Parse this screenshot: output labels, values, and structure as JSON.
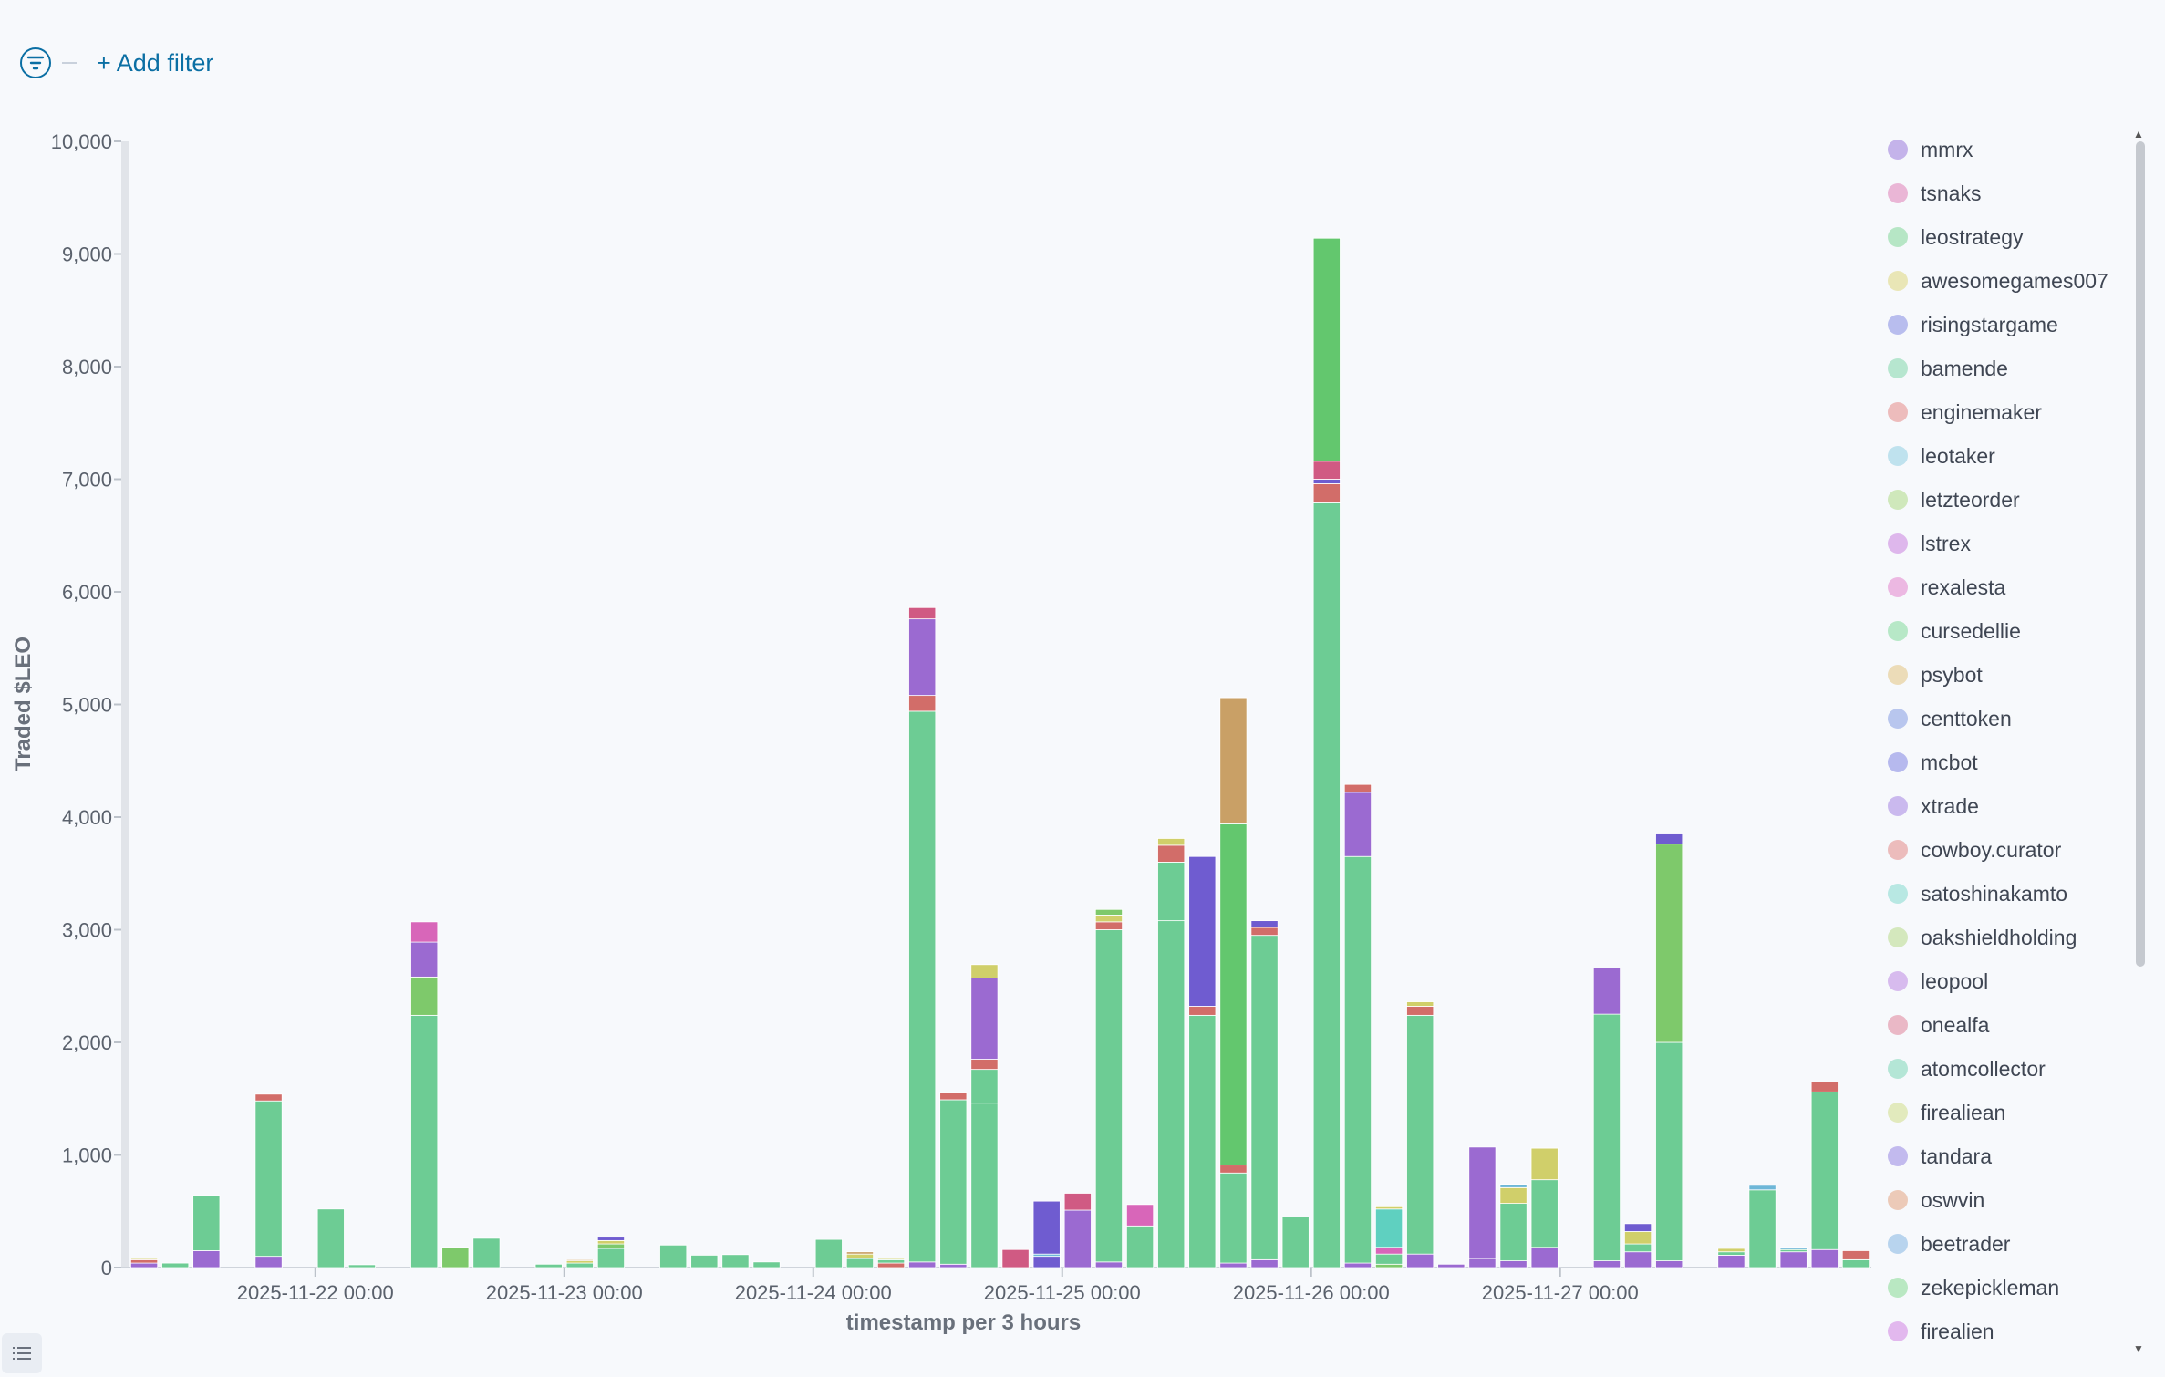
{
  "filter": {
    "add_label": "+ Add filter"
  },
  "colors": [
    "#6dcc94",
    "#9b6ad1",
    "#d26d69",
    "#d0cf6a",
    "#7ec96b",
    "#d866b9",
    "#5fd0c0",
    "#6f5cd0",
    "#c9a066",
    "#d05a83",
    "#6eb7d8",
    "#63c76e"
  ],
  "legend": [
    {
      "name": "mmrx",
      "color": "#c4b3ea"
    },
    {
      "name": "tsnaks",
      "color": "#eab6d6"
    },
    {
      "name": "leostrategy",
      "color": "#b6e6c5"
    },
    {
      "name": "awesomegames007",
      "color": "#e9e6b6"
    },
    {
      "name": "risingstargame",
      "color": "#b8bdee"
    },
    {
      "name": "bamende",
      "color": "#b6e6cf"
    },
    {
      "name": "enginemaker",
      "color": "#edbcbc"
    },
    {
      "name": "leotaker",
      "color": "#bfe2ee"
    },
    {
      "name": "letzteorder",
      "color": "#cfe8bb"
    },
    {
      "name": "lstrex",
      "color": "#deb7ec"
    },
    {
      "name": "rexalesta",
      "color": "#ecb8e2"
    },
    {
      "name": "cursedellie",
      "color": "#b7e8c7"
    },
    {
      "name": "psybot",
      "color": "#ecdcb8"
    },
    {
      "name": "centtoken",
      "color": "#b8c6ee"
    },
    {
      "name": "mcbot",
      "color": "#b6b9ee"
    },
    {
      "name": "xtrade",
      "color": "#cab9ee"
    },
    {
      "name": "cowboy.curator",
      "color": "#ecbcbc"
    },
    {
      "name": "satoshinakamto",
      "color": "#b8e8e3"
    },
    {
      "name": "oakshieldholding",
      "color": "#d4e8bd"
    },
    {
      "name": "leopool",
      "color": "#d7bbee"
    },
    {
      "name": "onealfa",
      "color": "#eab8c6"
    },
    {
      "name": "atomcollector",
      "color": "#b4e6d6"
    },
    {
      "name": "firealiean",
      "color": "#e2eabd"
    },
    {
      "name": "tandara",
      "color": "#c2baee"
    },
    {
      "name": "oswvin",
      "color": "#eccab8"
    },
    {
      "name": "beetrader",
      "color": "#b8d4ee"
    },
    {
      "name": "zekepickleman",
      "color": "#b9e8c2"
    },
    {
      "name": "firealien",
      "color": "#e2b8ee"
    }
  ],
  "chart_data": {
    "type": "bar",
    "stacked": true,
    "xlabel": "timestamp per 3 hours",
    "ylabel": "Traded $LEO",
    "ylim": [
      0,
      10000
    ],
    "yticks": [
      0,
      1000,
      2000,
      3000,
      4000,
      5000,
      6000,
      7000,
      8000,
      9000,
      10000
    ],
    "yticklabels": [
      "0",
      "1,000",
      "2,000",
      "3,000",
      "4,000",
      "5,000",
      "6,000",
      "7,000",
      "8,000",
      "9,000",
      "10,000"
    ],
    "xticks": [
      {
        "label": "2025-11-22 00:00",
        "bucket": 6
      },
      {
        "label": "2025-11-23 00:00",
        "bucket": 14
      },
      {
        "label": "2025-11-24 00:00",
        "bucket": 22
      },
      {
        "label": "2025-11-25 00:00",
        "bucket": 30
      },
      {
        "label": "2025-11-26 00:00",
        "bucket": 38
      },
      {
        "label": "2025-11-27 00:00",
        "bucket": 46
      }
    ],
    "bucket_count": 56,
    "bars": [
      {
        "bucket": 0,
        "segments": [
          [
            40,
            1
          ],
          [
            30,
            2
          ],
          [
            10,
            3
          ]
        ]
      },
      {
        "bucket": 1,
        "segments": [
          [
            40,
            0
          ]
        ]
      },
      {
        "bucket": 2,
        "segments": [
          [
            150,
            1
          ],
          [
            300,
            0
          ],
          [
            190,
            0
          ]
        ]
      },
      {
        "bucket": 4,
        "segments": [
          [
            100,
            1
          ],
          [
            1380,
            0
          ],
          [
            60,
            2
          ]
        ]
      },
      {
        "bucket": 6,
        "segments": [
          [
            520,
            0
          ]
        ]
      },
      {
        "bucket": 7,
        "segments": [
          [
            25,
            0
          ]
        ]
      },
      {
        "bucket": 9,
        "segments": [
          [
            2240,
            0
          ],
          [
            340,
            4
          ],
          [
            310,
            1
          ],
          [
            180,
            5
          ]
        ]
      },
      {
        "bucket": 10,
        "segments": [
          [
            180,
            4
          ]
        ]
      },
      {
        "bucket": 11,
        "segments": [
          [
            260,
            0
          ]
        ]
      },
      {
        "bucket": 13,
        "segments": [
          [
            30,
            0
          ]
        ]
      },
      {
        "bucket": 14,
        "segments": [
          [
            40,
            0
          ],
          [
            20,
            3
          ],
          [
            10,
            8
          ]
        ]
      },
      {
        "bucket": 15,
        "segments": [
          [
            170,
            0
          ],
          [
            40,
            4
          ],
          [
            30,
            3
          ],
          [
            30,
            7
          ]
        ]
      },
      {
        "bucket": 17,
        "segments": [
          [
            200,
            0
          ]
        ]
      },
      {
        "bucket": 18,
        "segments": [
          [
            110,
            0
          ]
        ]
      },
      {
        "bucket": 19,
        "segments": [
          [
            115,
            0
          ]
        ]
      },
      {
        "bucket": 20,
        "segments": [
          [
            50,
            0
          ]
        ]
      },
      {
        "bucket": 22,
        "segments": [
          [
            250,
            0
          ]
        ]
      },
      {
        "bucket": 23,
        "segments": [
          [
            80,
            0
          ],
          [
            40,
            3
          ],
          [
            20,
            8
          ]
        ]
      },
      {
        "bucket": 24,
        "segments": [
          [
            40,
            2
          ],
          [
            30,
            0
          ],
          [
            10,
            3
          ]
        ]
      },
      {
        "bucket": 25,
        "segments": [
          [
            50,
            1
          ],
          [
            4890,
            0
          ],
          [
            140,
            2
          ],
          [
            680,
            1
          ],
          [
            100,
            9
          ]
        ]
      },
      {
        "bucket": 26,
        "segments": [
          [
            30,
            1
          ],
          [
            1460,
            0
          ],
          [
            60,
            2
          ]
        ]
      },
      {
        "bucket": 27,
        "segments": [
          [
            1460,
            0
          ],
          [
            300,
            0
          ],
          [
            90,
            2
          ],
          [
            720,
            1
          ],
          [
            120,
            3
          ]
        ]
      },
      {
        "bucket": 28,
        "segments": [
          [
            160,
            9
          ]
        ]
      },
      {
        "bucket": 29,
        "segments": [
          [
            100,
            7
          ],
          [
            20,
            10
          ],
          [
            470,
            7
          ]
        ]
      },
      {
        "bucket": 30,
        "segments": [
          [
            510,
            1
          ],
          [
            150,
            9
          ]
        ]
      },
      {
        "bucket": 31,
        "segments": [
          [
            50,
            1
          ],
          [
            2950,
            0
          ],
          [
            70,
            2
          ],
          [
            60,
            3
          ],
          [
            50,
            4
          ]
        ]
      },
      {
        "bucket": 32,
        "segments": [
          [
            370,
            0
          ],
          [
            190,
            5
          ]
        ]
      },
      {
        "bucket": 33,
        "segments": [
          [
            3080,
            0
          ],
          [
            520,
            0
          ],
          [
            150,
            2
          ],
          [
            60,
            3
          ]
        ]
      },
      {
        "bucket": 34,
        "segments": [
          [
            2240,
            0
          ],
          [
            80,
            2
          ],
          [
            1330,
            7
          ]
        ]
      },
      {
        "bucket": 35,
        "segments": [
          [
            40,
            1
          ],
          [
            800,
            0
          ],
          [
            70,
            2
          ],
          [
            3030,
            11
          ],
          [
            1120,
            8
          ]
        ]
      },
      {
        "bucket": 36,
        "segments": [
          [
            70,
            1
          ],
          [
            2880,
            0
          ],
          [
            70,
            2
          ],
          [
            60,
            7
          ]
        ]
      },
      {
        "bucket": 37,
        "segments": [
          [
            450,
            0
          ]
        ]
      },
      {
        "bucket": 38,
        "segments": [
          [
            6790,
            0
          ],
          [
            170,
            2
          ],
          [
            40,
            7
          ],
          [
            160,
            9
          ],
          [
            1980,
            11
          ]
        ]
      },
      {
        "bucket": 39,
        "segments": [
          [
            40,
            1
          ],
          [
            3610,
            0
          ],
          [
            570,
            1
          ],
          [
            70,
            2
          ]
        ]
      },
      {
        "bucket": 40,
        "segments": [
          [
            30,
            4
          ],
          [
            90,
            0
          ],
          [
            60,
            5
          ],
          [
            340,
            6
          ],
          [
            20,
            3
          ]
        ]
      },
      {
        "bucket": 41,
        "segments": [
          [
            120,
            1
          ],
          [
            2120,
            0
          ],
          [
            80,
            2
          ],
          [
            40,
            3
          ]
        ]
      },
      {
        "bucket": 42,
        "segments": [
          [
            30,
            1
          ]
        ]
      },
      {
        "bucket": 43,
        "segments": [
          [
            80,
            1
          ],
          [
            990,
            1
          ]
        ]
      },
      {
        "bucket": 44,
        "segments": [
          [
            60,
            1
          ],
          [
            510,
            0
          ],
          [
            140,
            3
          ],
          [
            30,
            10
          ]
        ]
      },
      {
        "bucket": 45,
        "segments": [
          [
            180,
            1
          ],
          [
            600,
            0
          ],
          [
            280,
            3
          ]
        ]
      },
      {
        "bucket": 47,
        "segments": [
          [
            60,
            1
          ],
          [
            2190,
            0
          ],
          [
            410,
            1
          ]
        ]
      },
      {
        "bucket": 48,
        "segments": [
          [
            140,
            1
          ],
          [
            70,
            0
          ],
          [
            110,
            3
          ],
          [
            70,
            7
          ]
        ]
      },
      {
        "bucket": 49,
        "segments": [
          [
            60,
            1
          ],
          [
            1940,
            0
          ],
          [
            1760,
            4
          ],
          [
            90,
            7
          ]
        ]
      },
      {
        "bucket": 51,
        "segments": [
          [
            110,
            1
          ],
          [
            30,
            0
          ],
          [
            30,
            3
          ]
        ]
      },
      {
        "bucket": 52,
        "segments": [
          [
            690,
            0
          ],
          [
            40,
            10
          ]
        ]
      },
      {
        "bucket": 53,
        "segments": [
          [
            140,
            1
          ],
          [
            20,
            0
          ],
          [
            20,
            10
          ]
        ]
      },
      {
        "bucket": 54,
        "segments": [
          [
            160,
            1
          ],
          [
            1400,
            0
          ],
          [
            90,
            2
          ]
        ]
      },
      {
        "bucket": 55,
        "segments": [
          [
            70,
            0
          ],
          [
            80,
            2
          ]
        ]
      }
    ]
  }
}
